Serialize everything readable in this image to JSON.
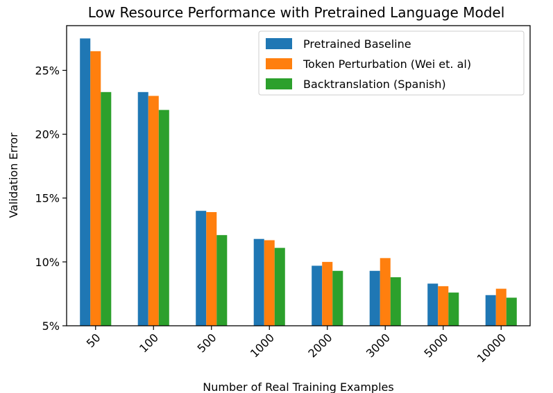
{
  "chart_data": {
    "type": "bar",
    "title": "Low Resource Performance with Pretrained Language Model",
    "xlabel": "Number of Real Training Examples",
    "ylabel": "Validation Error",
    "categories": [
      "50",
      "100",
      "500",
      "1000",
      "2000",
      "3000",
      "5000",
      "10000"
    ],
    "series": [
      {
        "name": "Pretrained Baseline",
        "color": "#1f77b4",
        "values": [
          27.5,
          23.3,
          14.0,
          11.8,
          9.7,
          9.3,
          8.3,
          7.4
        ]
      },
      {
        "name": "Token Perturbation (Wei et. al)",
        "color": "#ff7f0e",
        "values": [
          26.5,
          23.0,
          13.9,
          11.7,
          10.0,
          10.3,
          8.1,
          7.9
        ]
      },
      {
        "name": "Backtranslation (Spanish)",
        "color": "#2ca02c",
        "values": [
          23.3,
          21.9,
          12.1,
          11.1,
          9.3,
          8.8,
          7.6,
          7.2
        ]
      }
    ],
    "ylim": [
      5,
      28.5
    ],
    "yticks": [
      5,
      10,
      15,
      20,
      25
    ],
    "ytick_labels": [
      "5%",
      "10%",
      "15%",
      "20%",
      "25%"
    ],
    "legend_position": "top-right",
    "grid": false
  }
}
